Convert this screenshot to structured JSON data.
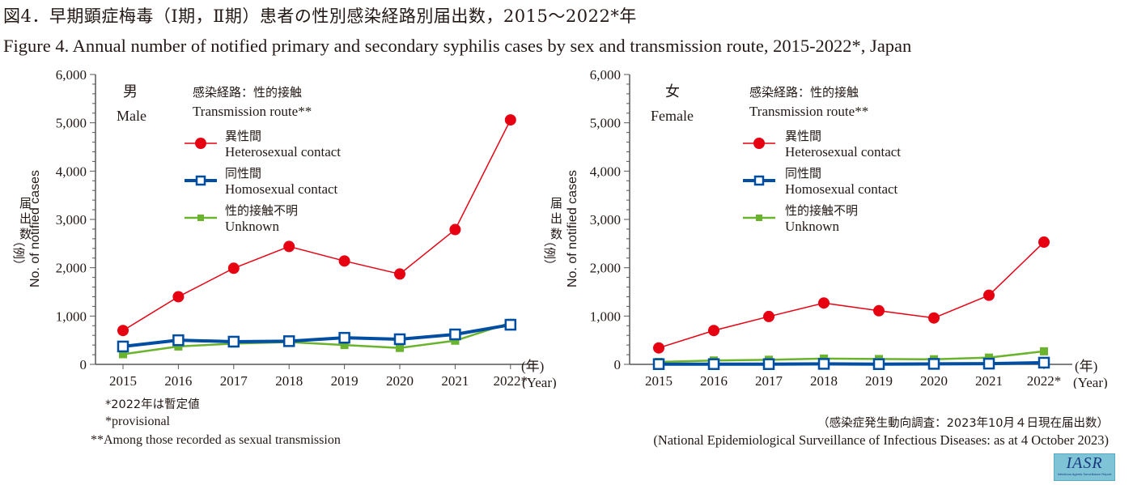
{
  "title": {
    "jp": "図4．早期顕症梅毒（Ⅰ期，Ⅱ期）患者の性別感染経路別届出数，2015〜2022*年",
    "en": "Figure 4. Annual number of notified primary and secondary syphilis cases by sex and transmission route, 2015-2022*, Japan"
  },
  "legend": {
    "header_jp": "感染経路：性的接触",
    "header_en": "Transmission route**",
    "items": [
      {
        "jp": "異性間",
        "en": "Heterosexual contact",
        "color": "#e60012",
        "marker": "circle"
      },
      {
        "jp": "同性間",
        "en": "Homosexual contact",
        "color": "#004ea2",
        "marker": "open-square"
      },
      {
        "jp": "性的接触不明",
        "en": "Unknown",
        "color": "#6ab42d",
        "marker": "filled-square"
      }
    ]
  },
  "axes": {
    "ylabel_jp": "届出数（例）",
    "ylabel_en": "No. of notified cases",
    "xunit_jp": "(年)",
    "xunit_en": "(Year)"
  },
  "chart_data": [
    {
      "type": "line",
      "panel": "male",
      "title_jp": "男",
      "title_en": "Male",
      "categories": [
        "2015",
        "2016",
        "2017",
        "2018",
        "2019",
        "2020",
        "2021",
        "2022*"
      ],
      "ylim": [
        0,
        6000
      ],
      "yticks": [
        "0",
        "1,000",
        "2,000",
        "3,000",
        "4,000",
        "5,000",
        "6,000"
      ],
      "ytick_values": [
        0,
        1000,
        2000,
        3000,
        4000,
        5000,
        6000
      ],
      "grid": false,
      "legend_position": "top-right",
      "series": [
        {
          "name": "Heterosexual contact",
          "values": [
            700,
            1400,
            1990,
            2440,
            2140,
            1870,
            2790,
            5060
          ]
        },
        {
          "name": "Homosexual contact",
          "values": [
            370,
            500,
            470,
            480,
            550,
            520,
            620,
            820
          ]
        },
        {
          "name": "Unknown",
          "values": [
            210,
            370,
            430,
            460,
            400,
            340,
            490,
            860
          ]
        }
      ]
    },
    {
      "type": "line",
      "panel": "female",
      "title_jp": "女",
      "title_en": "Female",
      "categories": [
        "2015",
        "2016",
        "2017",
        "2018",
        "2019",
        "2020",
        "2021",
        "2022*"
      ],
      "ylim": [
        0,
        6000
      ],
      "yticks": [
        "0",
        "1,000",
        "2,000",
        "3,000",
        "4,000",
        "5,000",
        "6,000"
      ],
      "ytick_values": [
        0,
        1000,
        2000,
        3000,
        4000,
        5000,
        6000
      ],
      "grid": false,
      "legend_position": "top-right",
      "series": [
        {
          "name": "Heterosexual contact",
          "values": [
            340,
            700,
            990,
            1270,
            1110,
            960,
            1430,
            2530
          ]
        },
        {
          "name": "Homosexual contact",
          "values": [
            5,
            5,
            5,
            10,
            5,
            10,
            15,
            35
          ]
        },
        {
          "name": "Unknown",
          "values": [
            50,
            80,
            95,
            120,
            110,
            105,
            140,
            270
          ]
        }
      ]
    }
  ],
  "notes": {
    "provisional_jp": "*2022年は暫定値",
    "provisional_en": "*provisional",
    "sexual_en": "**Among those recorded as sexual transmission"
  },
  "source": {
    "jp": "（感染症発生動向調査：2023年10月４日現在届出数）",
    "en": "(National Epidemiological Surveillance of Infectious Diseases: as at  4 October 2023)"
  },
  "logo": {
    "main": "IASR",
    "sub": "Infectious Agents Surveillance Report"
  }
}
